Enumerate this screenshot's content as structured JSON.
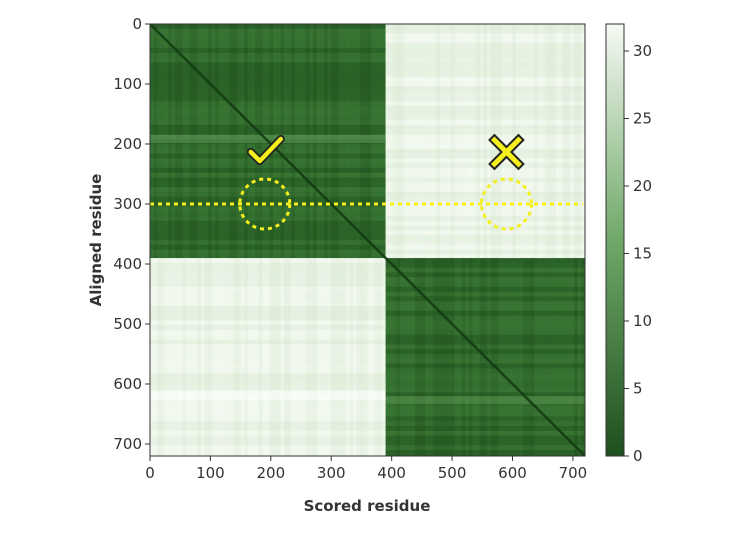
{
  "chart_data": {
    "type": "heatmap",
    "xlabel": "Scored residue",
    "ylabel": "Aligned residue",
    "xlim": [
      0,
      720
    ],
    "ylim": [
      0,
      720
    ],
    "x_ticks": [
      "0",
      "100",
      "200",
      "300",
      "400",
      "500",
      "600",
      "700"
    ],
    "y_ticks": [
      "0",
      "100",
      "200",
      "300",
      "400",
      "500",
      "600",
      "700"
    ],
    "colorbar": {
      "min": 0,
      "max": 32,
      "ticks": [
        "0",
        "5",
        "10",
        "15",
        "20",
        "25",
        "30"
      ],
      "low_color": "#1e4f1e",
      "high_color": "#f6faf4"
    },
    "blocks": [
      {
        "x_range": [
          0,
          390
        ],
        "y_range": [
          0,
          390
        ],
        "level": "low"
      },
      {
        "x_range": [
          390,
          720
        ],
        "y_range": [
          0,
          390
        ],
        "level": "high"
      },
      {
        "x_range": [
          0,
          390
        ],
        "y_range": [
          390,
          720
        ],
        "level": "high"
      },
      {
        "x_range": [
          390,
          720
        ],
        "y_range": [
          390,
          720
        ],
        "level": "low"
      }
    ],
    "annotations": {
      "guide_line_y": 300,
      "circles": [
        {
          "x": 190,
          "y": 300,
          "label": "check-mark"
        },
        {
          "x": 590,
          "y": 300,
          "label": "x-mark"
        }
      ],
      "color": "#f5ef1e"
    }
  }
}
